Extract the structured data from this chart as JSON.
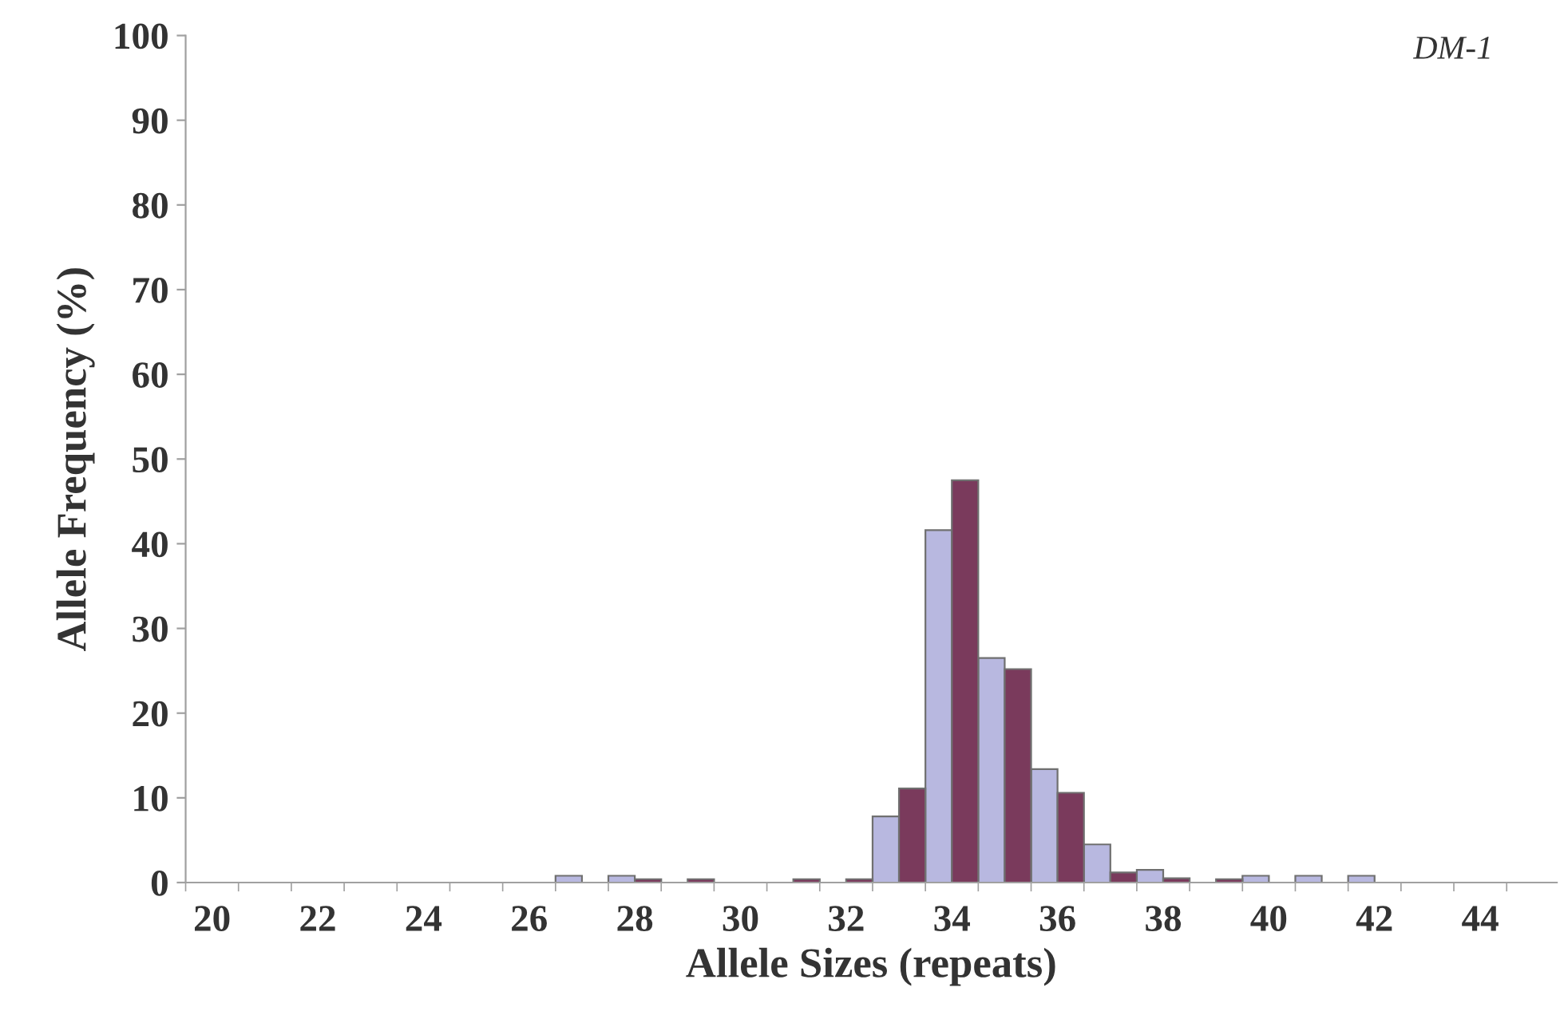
{
  "chart_data": {
    "type": "bar",
    "xlabel": "Allele Sizes (repeats)",
    "ylabel": "Allele Frequency (%)",
    "annotations": [
      "DM-1"
    ],
    "categories": [
      "20",
      null,
      "22",
      null,
      "24",
      null,
      "26",
      null,
      "28",
      null,
      "30",
      null,
      "32",
      null,
      "34",
      null,
      "36",
      null,
      "38",
      null,
      "40",
      null,
      "42",
      null,
      "44"
    ],
    "series": [
      {
        "color": "#b8b8e0",
        "values": [
          null,
          null,
          null,
          null,
          null,
          null,
          null,
          0.8,
          0.8,
          null,
          null,
          null,
          null,
          7.8,
          41.6,
          26.5,
          13.4,
          4.5,
          1.5,
          null,
          0.8,
          0.8,
          0.8,
          null,
          null
        ]
      },
      {
        "color": "#7a3a5c",
        "values": [
          null,
          null,
          null,
          null,
          null,
          null,
          null,
          null,
          0.4,
          0.4,
          null,
          0.4,
          0.4,
          11.1,
          47.5,
          25.2,
          10.6,
          1.2,
          0.5,
          0.4,
          null,
          null,
          null,
          null,
          null
        ]
      }
    ],
    "ylim": [
      0,
      100
    ],
    "yticks": [
      0,
      10,
      20,
      30,
      40,
      50,
      60,
      70,
      80,
      90,
      100
    ],
    "grid": false,
    "legend": false
  }
}
